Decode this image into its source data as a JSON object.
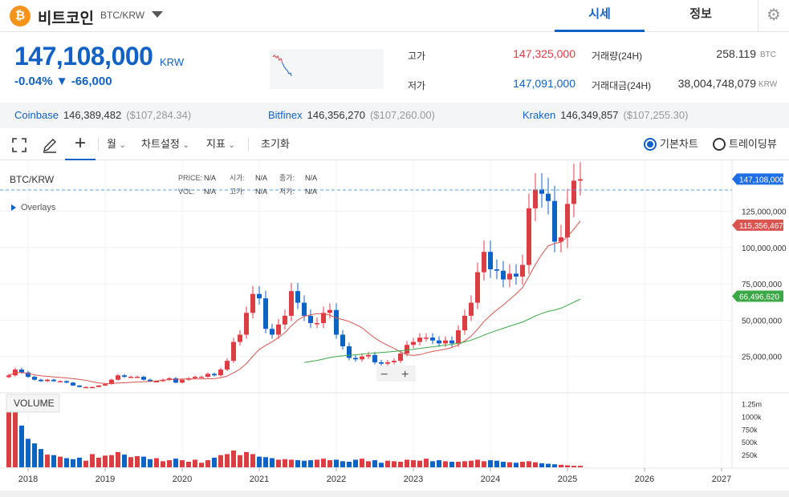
{
  "header": {
    "coin_name": "비트코인",
    "pair": "BTC/KRW",
    "logo_symbol": "₿",
    "tabs": [
      "시세",
      "정보"
    ],
    "settings_icon": "gear-icon"
  },
  "ticker": {
    "price": "147,108,000",
    "unit": "KRW",
    "change": "-0.04% ▼ -66,000",
    "high_label": "고가",
    "high": "147,325,000",
    "low_label": "저가",
    "low": "147,091,000",
    "volume_label": "거래량(24H)",
    "volume": "258.119",
    "volume_unit": "BTC",
    "value_label": "거래대금(24H)",
    "value": "38,004,748,079",
    "value_unit": "KRW",
    "colors": {
      "up": "#dd3c44",
      "down": "#1261c4"
    }
  },
  "exchanges": [
    {
      "name": "Coinbase",
      "price": "146,389,482",
      "usd": "($107,284.34)"
    },
    {
      "name": "Bitfinex",
      "price": "146,356,270",
      "usd": "($107,260.00)"
    },
    {
      "name": "Kraken",
      "price": "146,349,857",
      "usd": "($107,255.30)"
    }
  ],
  "toolbar": {
    "period": "월",
    "chart_settings": "차트설정",
    "indicators": "지표",
    "reset": "초기화",
    "basic_chart": "기본차트",
    "tradingview": "트레이딩뷰",
    "selected_view": "기본차트"
  },
  "legend": {
    "symbol": "BTC/KRW",
    "overlays": "Overlays",
    "price_label": "PRICE:",
    "price": "N/A",
    "open_label": "시가:",
    "open": "N/A",
    "close_label": "종가:",
    "close": "N/A",
    "vol_label": "VOL:",
    "vol": "N/A",
    "high_label": "고가:",
    "high": "N/A",
    "low_label": "저가:",
    "low": "N/A",
    "volume_title": "VOLUME"
  },
  "chart_data": {
    "type": "candlestick",
    "x_ticks": [
      "2018",
      "2019",
      "2020",
      "2021",
      "2022",
      "2023",
      "2024",
      "2025",
      "2026",
      "2027"
    ],
    "y_ticks": [
      "25,000,000",
      "50,000,000",
      "75,000,000",
      "100,000,000",
      "125,000,000"
    ],
    "volume_ticks": [
      "250k",
      "500k",
      "750k",
      "1000k",
      "1.25m"
    ],
    "price_tags": [
      {
        "label": "147,108,000",
        "value": 147108000,
        "color": "#1e6fe6"
      },
      {
        "label": "115,356,467",
        "value": 115356467,
        "color": "#d9534f"
      },
      {
        "label": "66,496,620",
        "value": 66496620,
        "color": "#3aa845"
      }
    ],
    "ma_colors": {
      "short": "#d9534f",
      "long": "#3aa845"
    },
    "yrange": [
      0,
      160000000
    ]
  }
}
